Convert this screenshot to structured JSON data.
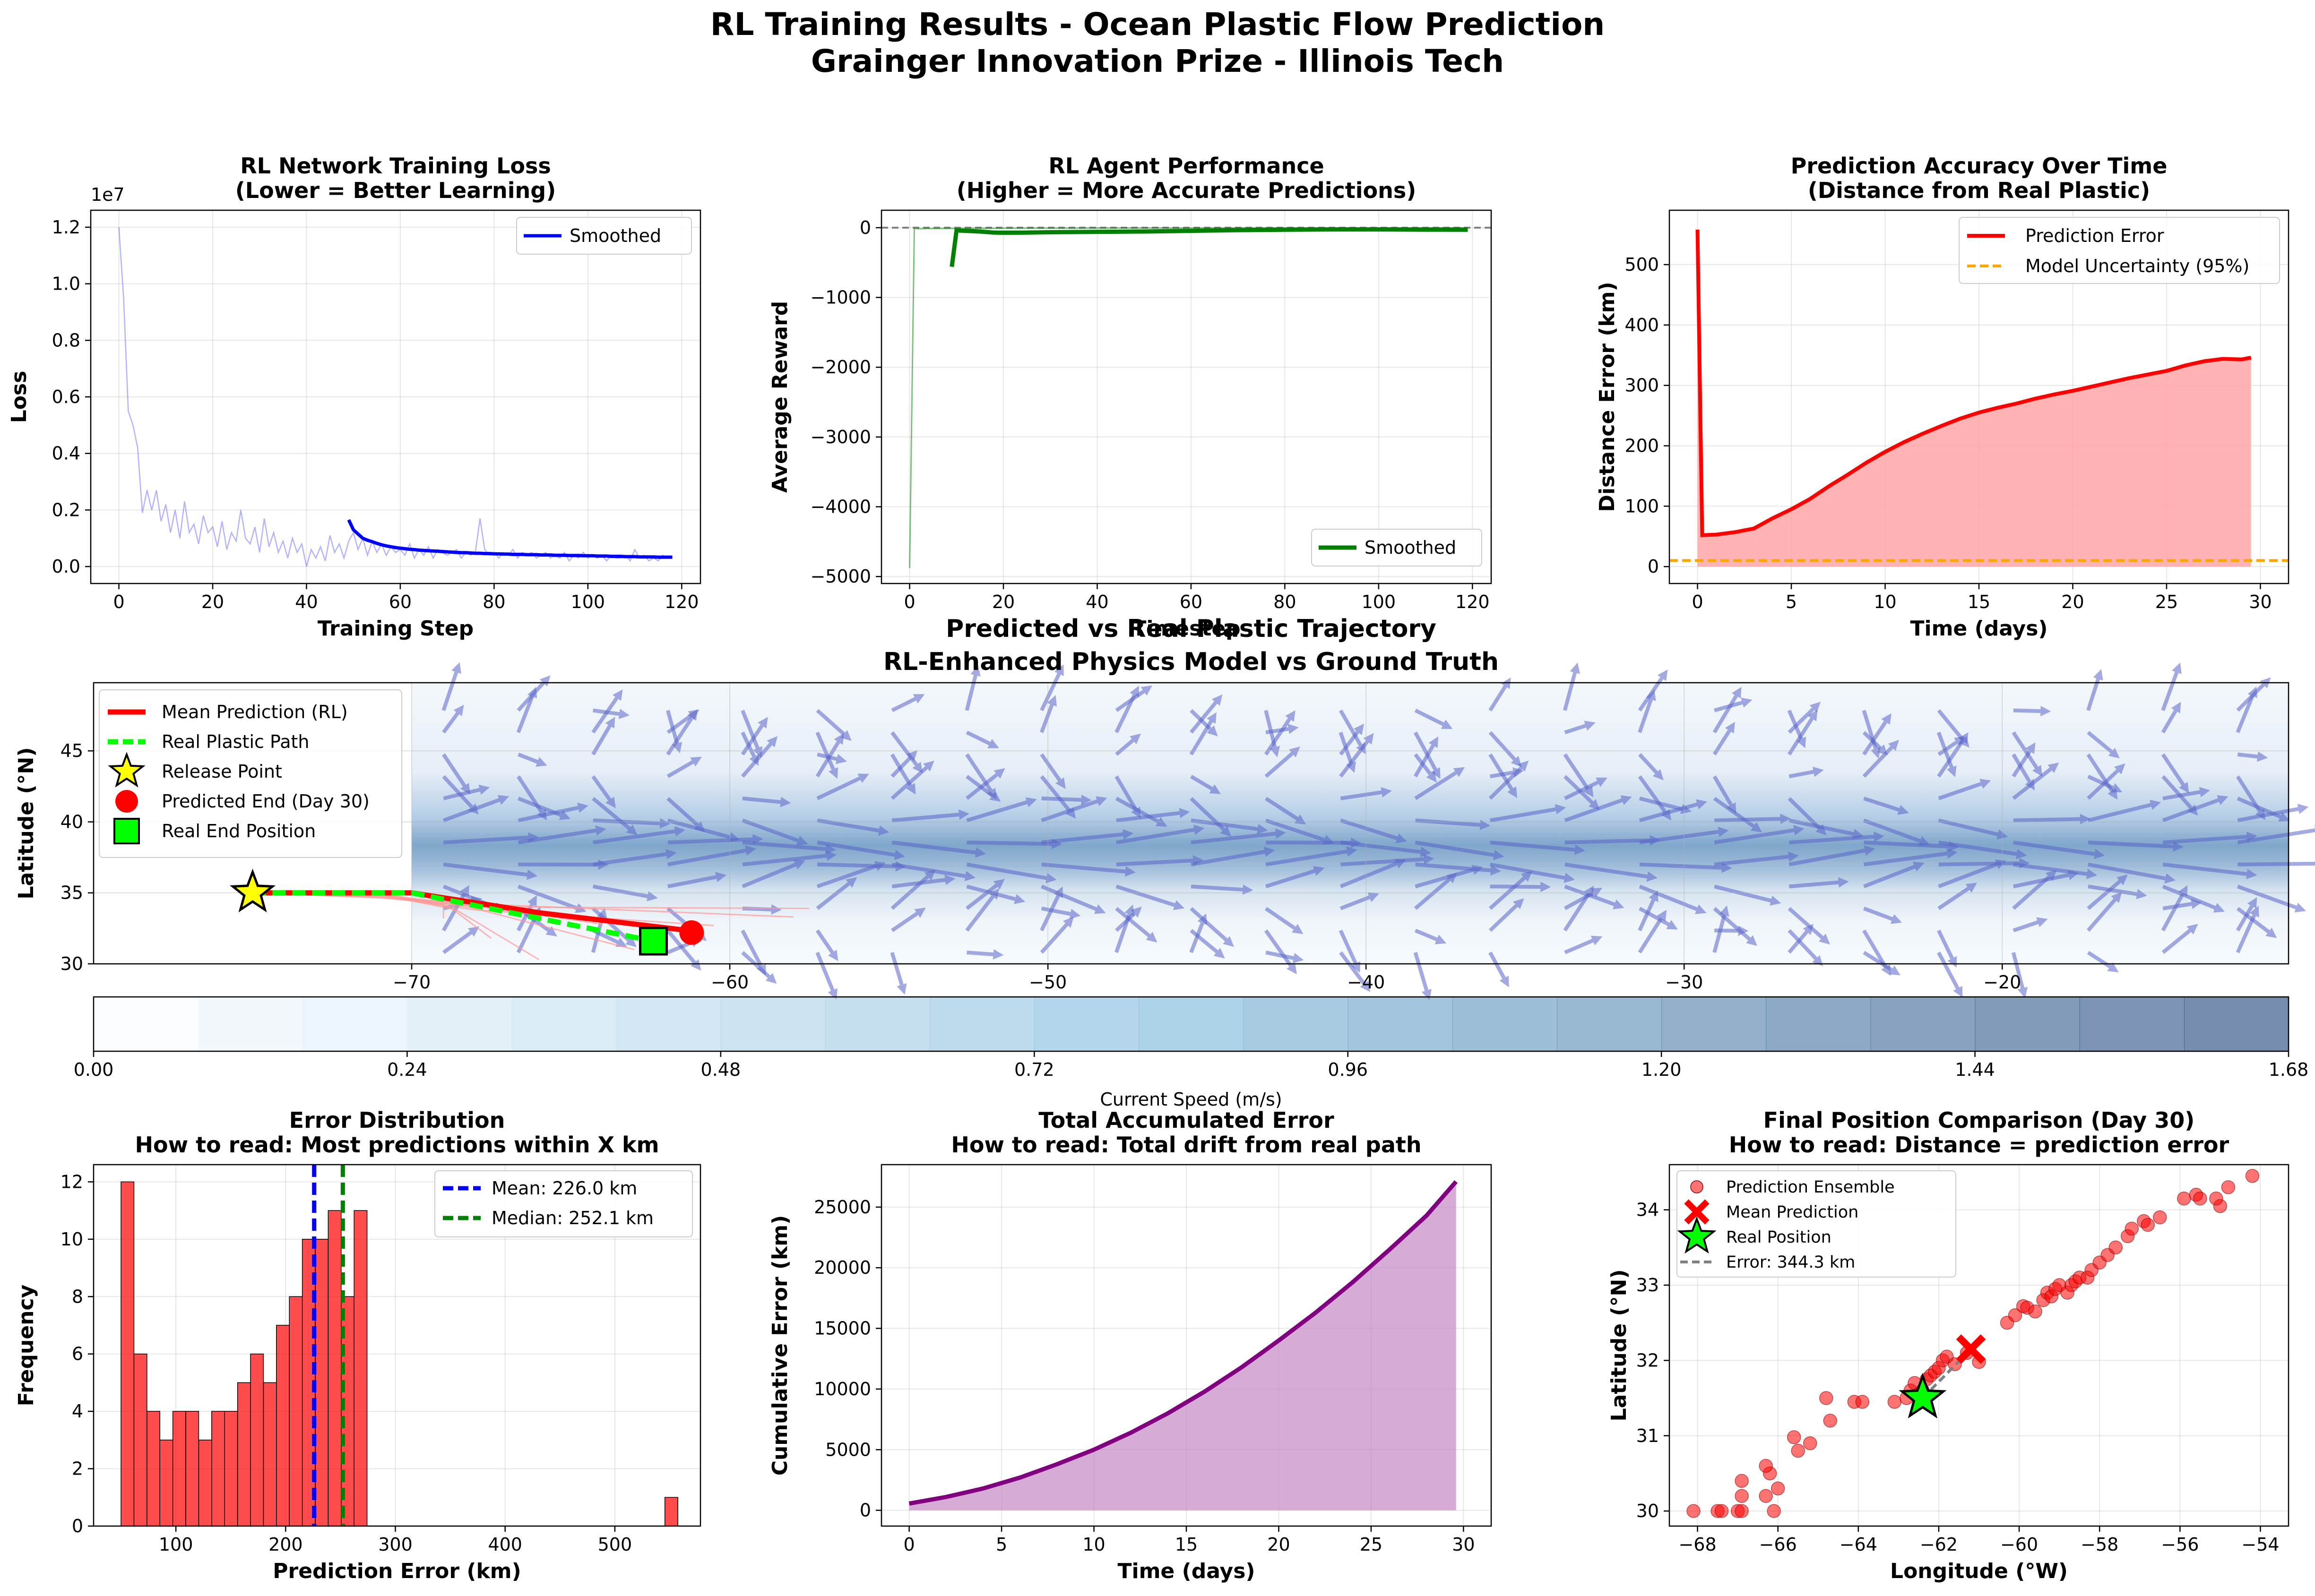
{
  "suptitle": [
    "RL Training Results - Ocean Plastic Flow Prediction",
    "Grainger Innovation Prize - Illinois Tech"
  ],
  "chart_data": [
    {
      "id": "loss",
      "type": "line",
      "title": [
        "RL Network Training Loss",
        "(Lower = Better Learning)"
      ],
      "xlabel": "Training Step",
      "ylabel": "Loss",
      "y_scale_label": "1e7",
      "xlim": [
        -6,
        124
      ],
      "ylim": [
        -0.06,
        1.26
      ],
      "xticks": [
        0,
        20,
        40,
        60,
        80,
        100,
        120
      ],
      "yticks": [
        0.0,
        0.2,
        0.4,
        0.6,
        0.8,
        1.0,
        1.2
      ],
      "ytick_labels": [
        "0.0",
        "0.2",
        "0.4",
        "0.6",
        "0.8",
        "1.0",
        "1.2"
      ],
      "grid": true,
      "legend_position": "upper right",
      "series": [
        {
          "role": "raw",
          "color": "#0000ff",
          "opacity": 0.3,
          "values": [
            1.2,
            0.95,
            0.55,
            0.5,
            0.42,
            0.19,
            0.27,
            0.2,
            0.27,
            0.16,
            0.22,
            0.12,
            0.2,
            0.1,
            0.23,
            0.12,
            0.15,
            0.08,
            0.18,
            0.12,
            0.14,
            0.07,
            0.16,
            0.06,
            0.12,
            0.09,
            0.2,
            0.1,
            0.08,
            0.14,
            0.05,
            0.17,
            0.07,
            0.12,
            0.05,
            0.09,
            0.03,
            0.1,
            0.05,
            0.08,
            0.0,
            0.06,
            0.03,
            0.07,
            0.02,
            0.11,
            0.05,
            0.08,
            0.03,
            0.09,
            0.12,
            0.06,
            0.1,
            0.04,
            0.09,
            0.05,
            0.08,
            0.04,
            0.07,
            0.05,
            0.06,
            0.04,
            0.08,
            0.03,
            0.06,
            0.04,
            0.07,
            0.03,
            0.06,
            0.05,
            0.04,
            0.05,
            0.06,
            0.03,
            0.05,
            0.04,
            0.05,
            0.17,
            0.06,
            0.04,
            0.05,
            0.03,
            0.05,
            0.04,
            0.06,
            0.03,
            0.05,
            0.04,
            0.05,
            0.03,
            0.04,
            0.05,
            0.03,
            0.04,
            0.03,
            0.05,
            0.02,
            0.04,
            0.03,
            0.05,
            0.03,
            0.04,
            0.03,
            0.04,
            0.02,
            0.04,
            0.03,
            0.03,
            0.04,
            0.02,
            0.06,
            0.03,
            0.04,
            0.02,
            0.03,
            0.02,
            0.04,
            0.03,
            0.03
          ]
        },
        {
          "role": "smoothed",
          "name": "Smoothed",
          "color": "#0000ff",
          "x_start": 49,
          "values": [
            0.165,
            0.13,
            0.115,
            0.1,
            0.093,
            0.088,
            0.082,
            0.077,
            0.073,
            0.07,
            0.067,
            0.065,
            0.063,
            0.061,
            0.06,
            0.058,
            0.057,
            0.056,
            0.055,
            0.054,
            0.053,
            0.052,
            0.051,
            0.05,
            0.049,
            0.049,
            0.048,
            0.047,
            0.047,
            0.046,
            0.046,
            0.045,
            0.045,
            0.044,
            0.044,
            0.043,
            0.043,
            0.043,
            0.042,
            0.042,
            0.042,
            0.041,
            0.041,
            0.041,
            0.04,
            0.04,
            0.04,
            0.039,
            0.039,
            0.039,
            0.038,
            0.038,
            0.038,
            0.037,
            0.037,
            0.037,
            0.036,
            0.036,
            0.036,
            0.035,
            0.035,
            0.035,
            0.034,
            0.034,
            0.034,
            0.034,
            0.033,
            0.033,
            0.033,
            0.033
          ]
        }
      ]
    },
    {
      "id": "reward",
      "type": "line",
      "title": [
        "RL Agent Performance",
        "(Higher = More Accurate Predictions)"
      ],
      "xlabel": "Timestep",
      "ylabel": "Average Reward",
      "xlim": [
        -6,
        124
      ],
      "ylim": [
        -5100,
        250
      ],
      "xticks": [
        0,
        20,
        40,
        60,
        80,
        100,
        120
      ],
      "yticks": [
        -5000,
        -4000,
        -3000,
        -2000,
        -1000,
        0
      ],
      "ytick_labels": [
        "−5000",
        "−4000",
        "−3000",
        "−2000",
        "−1000",
        "0"
      ],
      "grid": true,
      "reference_line": {
        "y": 0,
        "color": "#808080",
        "style": "dashed"
      },
      "legend_position": "lower right",
      "series": [
        {
          "role": "raw",
          "color": "#008000",
          "opacity": 0.5,
          "x": [
            0,
            1,
            2,
            5,
            10,
            20,
            40,
            60,
            80,
            100,
            119
          ],
          "y": [
            -4880,
            -10,
            -15,
            -12,
            -10,
            -8,
            -6,
            -5,
            -4,
            -4,
            -3
          ]
        },
        {
          "role": "smoothed",
          "name": "Smoothed",
          "color": "#008000",
          "x": [
            9,
            10,
            12,
            15,
            18,
            20,
            25,
            30,
            40,
            50,
            60,
            70,
            80,
            90,
            100,
            110,
            119
          ],
          "y": [
            -560,
            -40,
            -45,
            -55,
            -70,
            -72,
            -70,
            -65,
            -60,
            -55,
            -45,
            -35,
            -30,
            -25,
            -25,
            -28,
            -30
          ]
        }
      ]
    },
    {
      "id": "accuracy",
      "type": "area",
      "title": [
        "Prediction Accuracy Over Time",
        "(Distance from Real Plastic)"
      ],
      "xlabel": "Time (days)",
      "ylabel": "Distance Error (km)",
      "xlim": [
        -1.5,
        31.5
      ],
      "ylim": [
        -28,
        590
      ],
      "xticks": [
        0,
        5,
        10,
        15,
        20,
        25,
        30
      ],
      "yticks": [
        0,
        100,
        200,
        300,
        400,
        500
      ],
      "grid": true,
      "legend_position": "upper right",
      "series": [
        {
          "name": "Prediction Error",
          "color": "#ff0000",
          "fill": "#ff9a9a",
          "x": [
            0,
            0.25,
            1,
            2,
            3,
            4,
            5,
            6,
            7,
            8,
            9,
            10,
            11,
            12,
            13,
            14,
            15,
            16,
            17,
            18,
            19,
            20,
            21,
            22,
            23,
            24,
            25,
            26,
            27,
            28,
            29,
            29.5
          ],
          "y": [
            558,
            52,
            53,
            57,
            63,
            80,
            95,
            112,
            133,
            152,
            172,
            190,
            206,
            220,
            233,
            245,
            255,
            263,
            270,
            278,
            285,
            291,
            298,
            305,
            312,
            318,
            324,
            333,
            340,
            344,
            343,
            346
          ]
        },
        {
          "name": "Model Uncertainty (95%)",
          "color": "#ffa500",
          "style": "dashed",
          "y_const": 10
        }
      ]
    },
    {
      "id": "trajectory",
      "type": "heatmap",
      "title": [
        "Predicted vs Real Plastic Trajectory",
        "RL-Enhanced Physics Model vs Ground Truth"
      ],
      "ylabel": "Latitude (°N)",
      "xlim": [
        -80,
        -11
      ],
      "ylim": [
        30,
        49.8
      ],
      "xticks": [
        -70,
        -60,
        -50,
        -40,
        -30,
        -20
      ],
      "xtick_labels": [
        "−70",
        "−60",
        "−50",
        "−40",
        "−30",
        "−20"
      ],
      "yticks": [
        30,
        35,
        40,
        45
      ],
      "field_x_start": -70,
      "current_core_lat": 38,
      "grid": true,
      "legend_position": "upper left",
      "legend": [
        "Mean Prediction (RL)",
        "Real Plastic Path",
        "Release Point",
        "Predicted End (Day 30)",
        "Real End Position"
      ],
      "colors": {
        "mean": "#ff0000",
        "real": "#00ff00",
        "release": "#ffff00",
        "pred_end": "#ff0000",
        "real_end": "#00ff00",
        "arrows": "#5a64c8",
        "ensemble": "#ff9999"
      },
      "series": [
        {
          "name": "Mean Prediction (RL)",
          "x": [
            -75,
            -70,
            -66,
            -61.5
          ],
          "y": [
            35,
            35,
            33.6,
            32.4
          ]
        },
        {
          "name": "Real Plastic Path",
          "x": [
            -75,
            -70,
            -66,
            -62.4
          ],
          "y": [
            35,
            35,
            33.2,
            31.6
          ]
        }
      ],
      "points": {
        "release": [
          -75,
          35
        ],
        "predicted_end": [
          -61.2,
          32.2
        ],
        "real_end": [
          -62.4,
          31.6
        ]
      },
      "colorbar": {
        "label": "Current Speed (m/s)",
        "range": [
          0,
          1.68
        ],
        "ticks": [
          0.0,
          0.24,
          0.48,
          0.72,
          0.96,
          1.2,
          1.44,
          1.68
        ],
        "tick_labels": [
          "0.00",
          "0.24",
          "0.48",
          "0.72",
          "0.96",
          "1.20",
          "1.44",
          "1.68"
        ],
        "levels": 21,
        "colors": [
          "#f7fbff",
          "#6baed6",
          "#08306b"
        ]
      }
    },
    {
      "id": "histogram",
      "type": "bar",
      "title": [
        "Error Distribution",
        "How to read: Most predictions within X km"
      ],
      "xlabel": "Prediction Error (km)",
      "ylabel": "Frequency",
      "xlim": [
        25,
        578
      ],
      "ylim": [
        0,
        12.6
      ],
      "xticks": [
        100,
        200,
        300,
        400,
        500
      ],
      "yticks": [
        0,
        2,
        4,
        6,
        8,
        10,
        12
      ],
      "grid": true,
      "legend_position": "upper right",
      "bin_start": 50,
      "bin_width": 11.8,
      "values": [
        12,
        6,
        4,
        3,
        4,
        4,
        3,
        4,
        4,
        5,
        6,
        5,
        7,
        8,
        10,
        10,
        11,
        8,
        11,
        0,
        0,
        0,
        0,
        0,
        0,
        0,
        0,
        0,
        0,
        0,
        0,
        0,
        0,
        0,
        0,
        0,
        0,
        0,
        0,
        0,
        0,
        0,
        1
      ],
      "bar_color": "#ff0000",
      "lines": [
        {
          "name": "Mean: 226.0 km",
          "x": 226.0,
          "color": "#0000ff"
        },
        {
          "name": "Median: 252.1 km",
          "x": 252.1,
          "color": "#008000"
        }
      ]
    },
    {
      "id": "cumulative",
      "type": "area",
      "title": [
        "Total Accumulated Error",
        "How to read: Total drift from real path"
      ],
      "xlabel": "Time (days)",
      "ylabel": "Cumulative Error (km)",
      "xlim": [
        -1.5,
        31.5
      ],
      "ylim": [
        -1300,
        28500
      ],
      "xticks": [
        0,
        5,
        10,
        15,
        20,
        25,
        30
      ],
      "yticks": [
        0,
        5000,
        10000,
        15000,
        20000,
        25000
      ],
      "grid": true,
      "series": [
        {
          "color": "#800080",
          "fill": "#c080c0",
          "x": [
            0,
            2,
            4,
            6,
            8,
            10,
            12,
            14,
            16,
            18,
            20,
            22,
            24,
            26,
            28,
            29.6
          ],
          "y": [
            560,
            1100,
            1800,
            2700,
            3800,
            5000,
            6400,
            8000,
            9800,
            11800,
            14000,
            16300,
            18800,
            21500,
            24300,
            27100
          ]
        }
      ]
    },
    {
      "id": "final",
      "type": "scatter",
      "title": [
        "Final Position Comparison (Day 30)",
        "How to read: Distance = prediction error"
      ],
      "xlabel": "Longitude (°W)",
      "ylabel": "Latitude (°N)",
      "xlim": [
        -68.7,
        -53.3
      ],
      "ylim": [
        29.8,
        34.6
      ],
      "xticks": [
        -68,
        -66,
        -64,
        -62,
        -60,
        -58,
        -56,
        -54
      ],
      "xtick_labels": [
        "−68",
        "−66",
        "−64",
        "−62",
        "−60",
        "−58",
        "−56",
        "−54"
      ],
      "yticks": [
        30,
        31,
        32,
        33,
        34
      ],
      "grid": true,
      "legend_position": "upper left",
      "legend": [
        "Prediction Ensemble",
        "Mean Prediction",
        "Real Position",
        "Error: 344.3 km"
      ],
      "ensemble_color": "#ff0000",
      "ensemble": [
        [
          -68.1,
          30.0
        ],
        [
          -67.5,
          30.0
        ],
        [
          -67.4,
          30.0
        ],
        [
          -67.0,
          30.0
        ],
        [
          -66.9,
          30.0
        ],
        [
          -66.1,
          30.0
        ],
        [
          -66.9,
          30.2
        ],
        [
          -66.9,
          30.4
        ],
        [
          -66.3,
          30.2
        ],
        [
          -66.2,
          30.5
        ],
        [
          -66.3,
          30.6
        ],
        [
          -66.0,
          30.3
        ],
        [
          -65.5,
          30.8
        ],
        [
          -65.2,
          30.9
        ],
        [
          -65.6,
          30.98
        ],
        [
          -64.8,
          31.5
        ],
        [
          -64.7,
          31.2
        ],
        [
          -64.1,
          31.45
        ],
        [
          -63.9,
          31.45
        ],
        [
          -63.1,
          31.45
        ],
        [
          -62.8,
          31.5
        ],
        [
          -62.7,
          31.6
        ],
        [
          -62.6,
          31.7
        ],
        [
          -62.5,
          31.55
        ],
        [
          -62.4,
          31.6
        ],
        [
          -62.3,
          31.75
        ],
        [
          -62.2,
          31.8
        ],
        [
          -62.1,
          31.85
        ],
        [
          -62.0,
          31.9
        ],
        [
          -61.9,
          32.0
        ],
        [
          -61.8,
          32.05
        ],
        [
          -61.6,
          31.95
        ],
        [
          -61.3,
          32.1
        ],
        [
          -61.0,
          31.98
        ],
        [
          -60.3,
          32.5
        ],
        [
          -60.1,
          32.6
        ],
        [
          -59.9,
          32.72
        ],
        [
          -59.8,
          32.7
        ],
        [
          -59.6,
          32.65
        ],
        [
          -59.4,
          32.8
        ],
        [
          -59.3,
          32.9
        ],
        [
          -59.2,
          32.85
        ],
        [
          -59.1,
          32.95
        ],
        [
          -59.0,
          33.0
        ],
        [
          -58.8,
          32.9
        ],
        [
          -58.7,
          33.0
        ],
        [
          -58.6,
          33.05
        ],
        [
          -58.5,
          33.1
        ],
        [
          -58.3,
          33.1
        ],
        [
          -58.2,
          33.2
        ],
        [
          -58.0,
          33.3
        ],
        [
          -57.8,
          33.4
        ],
        [
          -57.6,
          33.5
        ],
        [
          -57.3,
          33.65
        ],
        [
          -57.2,
          33.75
        ],
        [
          -56.9,
          33.85
        ],
        [
          -56.8,
          33.8
        ],
        [
          -56.5,
          33.9
        ],
        [
          -55.9,
          34.15
        ],
        [
          -55.6,
          34.2
        ],
        [
          -55.5,
          34.15
        ],
        [
          -55.0,
          34.05
        ],
        [
          -55.1,
          34.15
        ],
        [
          -54.8,
          34.3
        ],
        [
          -54.2,
          34.45
        ]
      ],
      "mean_prediction": [
        -61.2,
        32.15
      ],
      "real_position": [
        -62.4,
        31.5
      ],
      "error_line_color": "#808080"
    }
  ]
}
